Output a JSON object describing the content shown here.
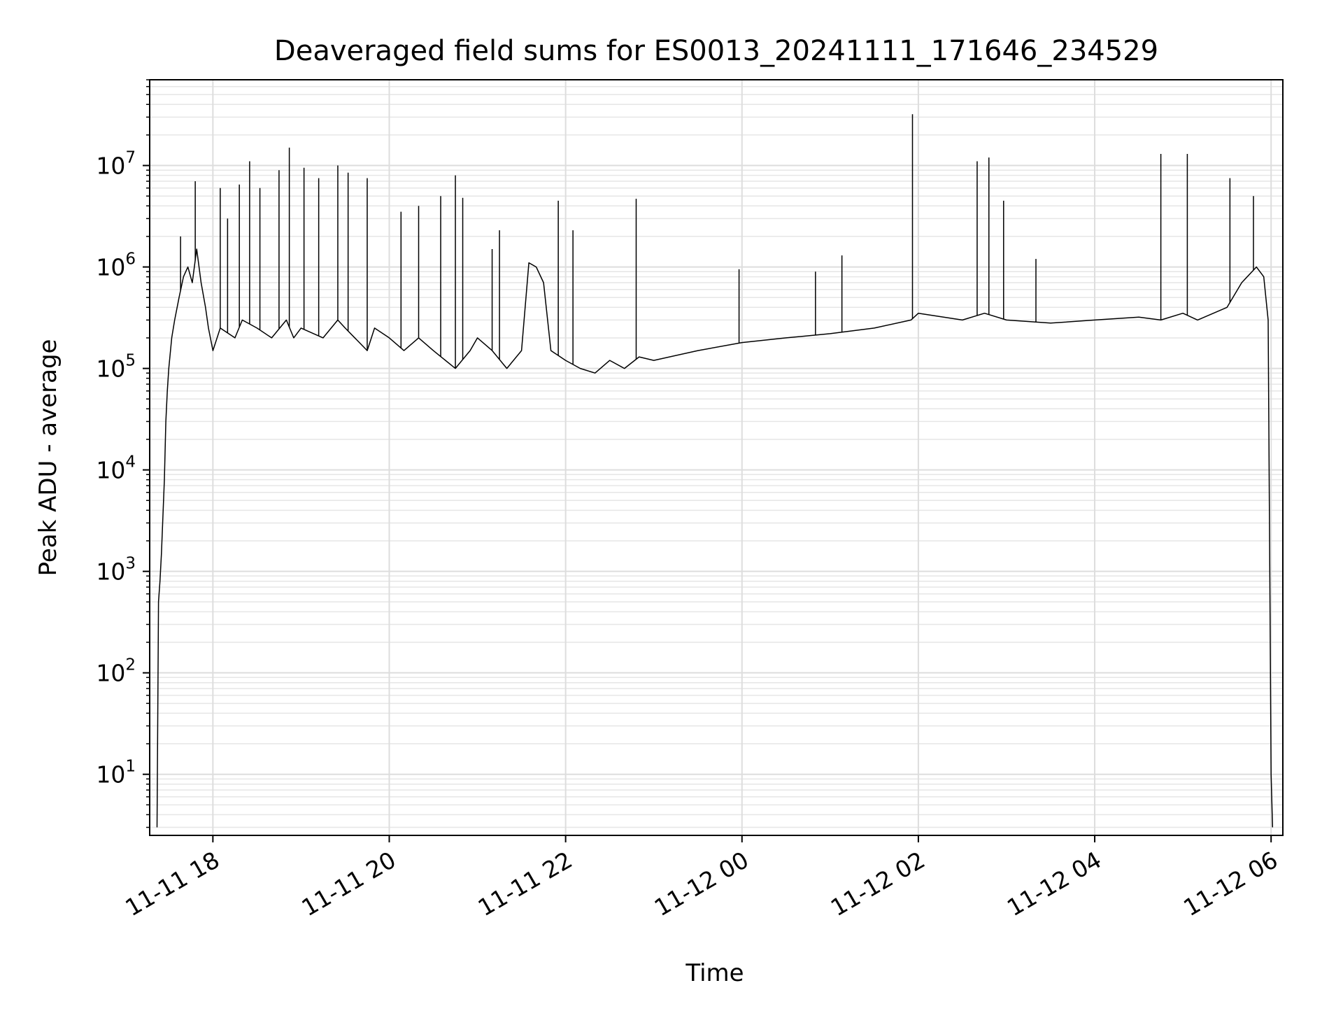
{
  "chart_data": {
    "type": "line",
    "title": "Deaveraged field sums for ES0013_20241111_171646_234529",
    "xlabel": "Time",
    "ylabel": "Peak ADU - average",
    "yscale": "log",
    "ylim": [
      2.5,
      70000000
    ],
    "xlim": [
      "2024-11-11T17:17",
      "2024-11-12T06:08"
    ],
    "grid": true,
    "x_ticks": [
      {
        "value": "2024-11-11T18:00",
        "label": "11-11 18"
      },
      {
        "value": "2024-11-11T20:00",
        "label": "11-11 20"
      },
      {
        "value": "2024-11-11T22:00",
        "label": "11-11 22"
      },
      {
        "value": "2024-11-12T00:00",
        "label": "11-12 00"
      },
      {
        "value": "2024-11-12T02:00",
        "label": "11-12 02"
      },
      {
        "value": "2024-11-12T04:00",
        "label": "11-12 04"
      },
      {
        "value": "2024-11-12T06:00",
        "label": "11-12 06"
      }
    ],
    "y_ticks": [
      {
        "value": 10,
        "base": "10",
        "exp": "1"
      },
      {
        "value": 100,
        "base": "10",
        "exp": "2"
      },
      {
        "value": 1000,
        "base": "10",
        "exp": "3"
      },
      {
        "value": 10000,
        "base": "10",
        "exp": "4"
      },
      {
        "value": 100000,
        "base": "10",
        "exp": "5"
      },
      {
        "value": 1000000,
        "base": "10",
        "exp": "6"
      },
      {
        "value": 10000000,
        "base": "10",
        "exp": "7"
      }
    ],
    "series": [
      {
        "color": "#000000",
        "x": [
          "2024-11-11T17:22",
          "2024-11-11T17:23",
          "2024-11-11T17:24",
          "2024-11-11T17:25",
          "2024-11-11T17:27",
          "2024-11-11T17:28",
          "2024-11-11T17:29",
          "2024-11-11T17:30",
          "2024-11-11T17:32",
          "2024-11-11T17:34",
          "2024-11-11T17:37",
          "2024-11-11T17:40",
          "2024-11-11T17:43",
          "2024-11-11T17:46",
          "2024-11-11T17:49",
          "2024-11-11T17:52",
          "2024-11-11T17:55",
          "2024-11-11T17:57",
          "2024-11-11T18:00",
          "2024-11-11T18:05",
          "2024-11-11T18:15",
          "2024-11-11T18:20",
          "2024-11-11T18:30",
          "2024-11-11T18:40",
          "2024-11-11T18:50",
          "2024-11-11T18:55",
          "2024-11-11T19:00",
          "2024-11-11T19:15",
          "2024-11-11T19:25",
          "2024-11-11T19:30",
          "2024-11-11T19:45",
          "2024-11-11T19:50",
          "2024-11-11T20:00",
          "2024-11-11T20:10",
          "2024-11-11T20:20",
          "2024-11-11T20:30",
          "2024-11-11T20:45",
          "2024-11-11T20:55",
          "2024-11-11T21:00",
          "2024-11-11T21:10",
          "2024-11-11T21:20",
          "2024-11-11T21:30",
          "2024-11-11T21:35",
          "2024-11-11T21:40",
          "2024-11-11T21:45",
          "2024-11-11T21:50",
          "2024-11-11T22:00",
          "2024-11-11T22:10",
          "2024-11-11T22:20",
          "2024-11-11T22:30",
          "2024-11-11T22:40",
          "2024-11-11T22:50",
          "2024-11-11T23:00",
          "2024-11-11T23:30",
          "2024-11-12T00:00",
          "2024-11-12T00:30",
          "2024-11-12T01:00",
          "2024-11-12T01:30",
          "2024-11-12T01:55",
          "2024-11-12T02:00",
          "2024-11-12T02:30",
          "2024-11-12T02:45",
          "2024-11-12T03:00",
          "2024-11-12T03:30",
          "2024-11-12T04:00",
          "2024-11-12T04:30",
          "2024-11-12T04:45",
          "2024-11-12T05:00",
          "2024-11-12T05:10",
          "2024-11-12T05:30",
          "2024-11-12T05:40",
          "2024-11-12T05:50",
          "2024-11-12T05:55",
          "2024-11-12T05:58",
          "2024-11-12T06:00",
          "2024-11-12T06:01"
        ],
        "y": [
          3,
          500,
          800,
          1500,
          8000,
          30000,
          60000,
          100000,
          200000,
          300000,
          500000,
          800000,
          1000000,
          700000,
          1500000,
          700000,
          400000,
          250000,
          150000,
          250000,
          200000,
          300000,
          250000,
          200000,
          300000,
          200000,
          250000,
          200000,
          300000,
          250000,
          150000,
          250000,
          200000,
          150000,
          200000,
          150000,
          100000,
          150000,
          200000,
          150000,
          100000,
          150000,
          1100000,
          1000000,
          700000,
          150000,
          120000,
          100000,
          90000,
          120000,
          100000,
          130000,
          120000,
          150000,
          180000,
          200000,
          220000,
          250000,
          300000,
          350000,
          300000,
          350000,
          300000,
          280000,
          300000,
          320000,
          300000,
          350000,
          300000,
          400000,
          700000,
          1000000,
          800000,
          300000,
          10,
          3
        ],
        "spikes": [
          {
            "x": "2024-11-11T17:38",
            "y": 2000000
          },
          {
            "x": "2024-11-11T17:48",
            "y": 7000000
          },
          {
            "x": "2024-11-11T18:05",
            "y": 6000000
          },
          {
            "x": "2024-11-11T18:10",
            "y": 3000000
          },
          {
            "x": "2024-11-11T18:18",
            "y": 6500000
          },
          {
            "x": "2024-11-11T18:25",
            "y": 11000000
          },
          {
            "x": "2024-11-11T18:32",
            "y": 6000000
          },
          {
            "x": "2024-11-11T18:45",
            "y": 9000000
          },
          {
            "x": "2024-11-11T18:52",
            "y": 15000000
          },
          {
            "x": "2024-11-11T19:02",
            "y": 9500000
          },
          {
            "x": "2024-11-11T19:12",
            "y": 7500000
          },
          {
            "x": "2024-11-11T19:25",
            "y": 10000000
          },
          {
            "x": "2024-11-11T19:32",
            "y": 8500000
          },
          {
            "x": "2024-11-11T19:45",
            "y": 7500000
          },
          {
            "x": "2024-11-11T20:08",
            "y": 3500000
          },
          {
            "x": "2024-11-11T20:20",
            "y": 4000000
          },
          {
            "x": "2024-11-11T20:35",
            "y": 5000000
          },
          {
            "x": "2024-11-11T20:45",
            "y": 8000000
          },
          {
            "x": "2024-11-11T20:50",
            "y": 4800000
          },
          {
            "x": "2024-11-11T21:10",
            "y": 1500000
          },
          {
            "x": "2024-11-11T21:15",
            "y": 2300000
          },
          {
            "x": "2024-11-11T21:55",
            "y": 4500000
          },
          {
            "x": "2024-11-11T22:05",
            "y": 2300000
          },
          {
            "x": "2024-11-11T22:48",
            "y": 4700000
          },
          {
            "x": "2024-11-11T23:58",
            "y": 950000
          },
          {
            "x": "2024-11-12T00:50",
            "y": 900000
          },
          {
            "x": "2024-11-12T01:08",
            "y": 1300000
          },
          {
            "x": "2024-11-12T01:56",
            "y": 32000000
          },
          {
            "x": "2024-11-12T02:40",
            "y": 11000000
          },
          {
            "x": "2024-11-12T02:48",
            "y": 12000000
          },
          {
            "x": "2024-11-12T02:58",
            "y": 4500000
          },
          {
            "x": "2024-11-12T03:20",
            "y": 1200000
          },
          {
            "x": "2024-11-12T04:45",
            "y": 13000000
          },
          {
            "x": "2024-11-12T05:03",
            "y": 13000000
          },
          {
            "x": "2024-11-12T05:32",
            "y": 7500000
          },
          {
            "x": "2024-11-12T05:48",
            "y": 5000000
          }
        ]
      }
    ]
  }
}
